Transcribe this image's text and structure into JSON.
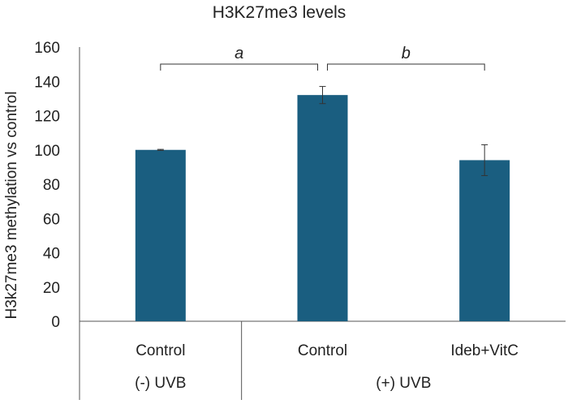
{
  "chart_data": {
    "type": "bar",
    "title": "H3K27me3 levels",
    "ylabel": "H3k27me3 methylation vs control",
    "xlabel": "",
    "ylim": [
      0,
      160
    ],
    "yticks": [
      0,
      20,
      40,
      60,
      80,
      100,
      120,
      140,
      160
    ],
    "grid": false,
    "categories": [
      "Control",
      "Control",
      "Ideb+VitC"
    ],
    "groups": [
      {
        "label": "(-) UVB",
        "categories": [
          "Control"
        ]
      },
      {
        "label": "(+) UVB",
        "categories": [
          "Control",
          "Ideb+VitC"
        ]
      }
    ],
    "values": [
      100,
      132,
      94
    ],
    "errors": [
      0.3,
      5,
      9
    ],
    "bar_color": "#1a5e80",
    "annotations": [
      {
        "label": "a",
        "from_category": 0,
        "to_category": 1
      },
      {
        "label": "b",
        "from_category": 1,
        "to_category": 2
      }
    ]
  }
}
